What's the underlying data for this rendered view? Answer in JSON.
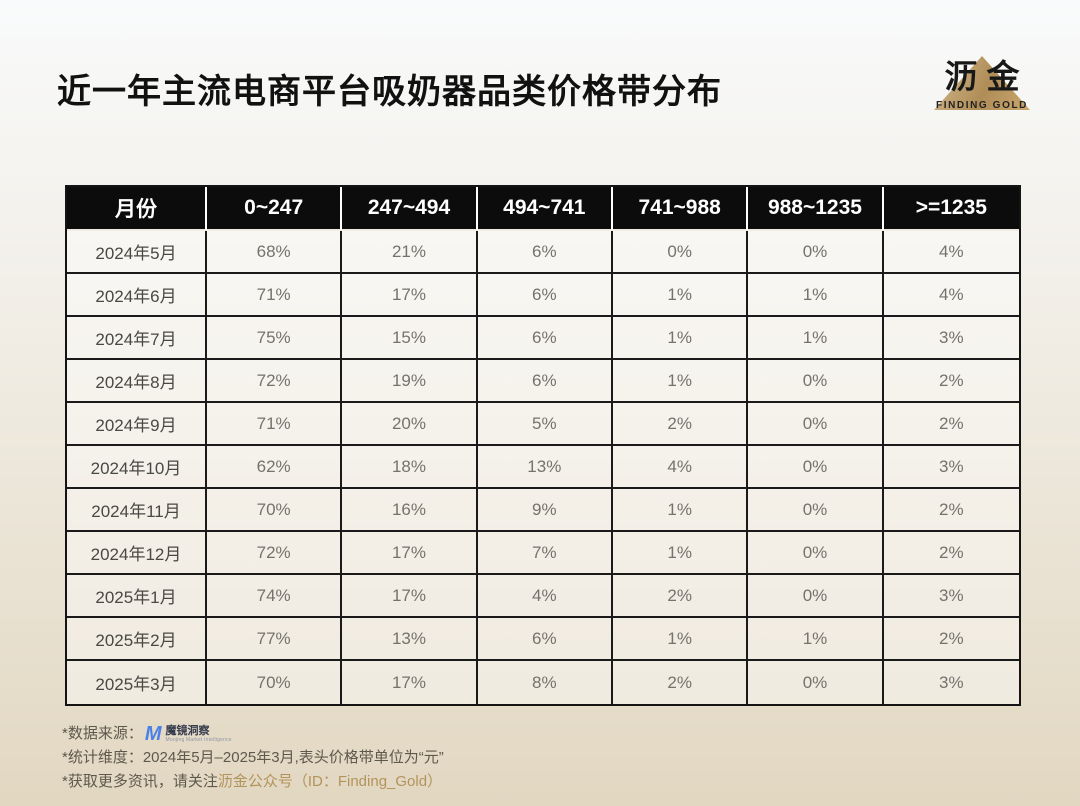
{
  "page": {
    "title": "近一年主流电商平台吸奶器品类价格带分布",
    "logo": {
      "name": "沥金",
      "tagline": "FINDING GOLD"
    }
  },
  "table": {
    "columns": [
      "月份",
      "0~247",
      "247~494",
      "494~741",
      "741~988",
      "988~1235",
      ">=1235"
    ],
    "rows": [
      {
        "month": "2024年5月",
        "values": [
          "68%",
          "21%",
          "6%",
          "0%",
          "0%",
          "4%"
        ]
      },
      {
        "month": "2024年6月",
        "values": [
          "71%",
          "17%",
          "6%",
          "1%",
          "1%",
          "4%"
        ]
      },
      {
        "month": "2024年7月",
        "values": [
          "75%",
          "15%",
          "6%",
          "1%",
          "1%",
          "3%"
        ]
      },
      {
        "month": "2024年8月",
        "values": [
          "72%",
          "19%",
          "6%",
          "1%",
          "0%",
          "2%"
        ]
      },
      {
        "month": "2024年9月",
        "values": [
          "71%",
          "20%",
          "5%",
          "2%",
          "0%",
          "2%"
        ]
      },
      {
        "month": "2024年10月",
        "values": [
          "62%",
          "18%",
          "13%",
          "4%",
          "0%",
          "3%"
        ]
      },
      {
        "month": "2024年11月",
        "values": [
          "70%",
          "16%",
          "9%",
          "1%",
          "0%",
          "2%"
        ]
      },
      {
        "month": "2024年12月",
        "values": [
          "72%",
          "17%",
          "7%",
          "1%",
          "0%",
          "2%"
        ]
      },
      {
        "month": "2025年1月",
        "values": [
          "74%",
          "17%",
          "4%",
          "2%",
          "0%",
          "3%"
        ]
      },
      {
        "month": "2025年2月",
        "values": [
          "77%",
          "13%",
          "6%",
          "1%",
          "1%",
          "2%"
        ]
      },
      {
        "month": "2025年3月",
        "values": [
          "70%",
          "17%",
          "8%",
          "2%",
          "0%",
          "3%"
        ]
      }
    ]
  },
  "chart_data": {
    "type": "table",
    "title": "近一年主流电商平台吸奶器品类价格带分布",
    "unit": "%",
    "price_band_unit": "元",
    "categories": [
      "2024年5月",
      "2024年6月",
      "2024年7月",
      "2024年8月",
      "2024年9月",
      "2024年10月",
      "2024年11月",
      "2024年12月",
      "2025年1月",
      "2025年2月",
      "2025年3月"
    ],
    "series": [
      {
        "name": "0~247",
        "values": [
          68,
          71,
          75,
          72,
          71,
          62,
          70,
          72,
          74,
          77,
          70
        ]
      },
      {
        "name": "247~494",
        "values": [
          21,
          17,
          15,
          19,
          20,
          18,
          16,
          17,
          17,
          13,
          17
        ]
      },
      {
        "name": "494~741",
        "values": [
          6,
          6,
          6,
          6,
          5,
          13,
          9,
          7,
          4,
          6,
          8
        ]
      },
      {
        "name": "741~988",
        "values": [
          0,
          1,
          1,
          1,
          2,
          4,
          1,
          1,
          2,
          1,
          2
        ]
      },
      {
        "name": "988~1235",
        "values": [
          0,
          1,
          1,
          0,
          0,
          0,
          0,
          0,
          0,
          1,
          0
        ]
      },
      {
        "name": ">=1235",
        "values": [
          4,
          4,
          3,
          2,
          2,
          3,
          2,
          2,
          3,
          2,
          3
        ]
      }
    ]
  },
  "footnotes": {
    "source_prefix": "*数据来源：",
    "source_logo_icon": "M",
    "source_logo_text": "魔镜洞察",
    "source_logo_tagline": "Moojing Market Intelligence",
    "dimension": "*统计维度：2024年5月–2025年3月,表头价格带单位为“元”",
    "more_prefix": "*获取更多资讯，请关注",
    "more_gold": "沥金公众号（ID：Finding_Gold）"
  },
  "colors": {
    "header_bg": "#0c0c0c",
    "accent_gold": "#b3935c",
    "logo_gold": "#b08d57",
    "moojing_blue": "#4a80e9",
    "bg_top": "#f9fafb",
    "bg_bottom": "#e2d7c1"
  }
}
